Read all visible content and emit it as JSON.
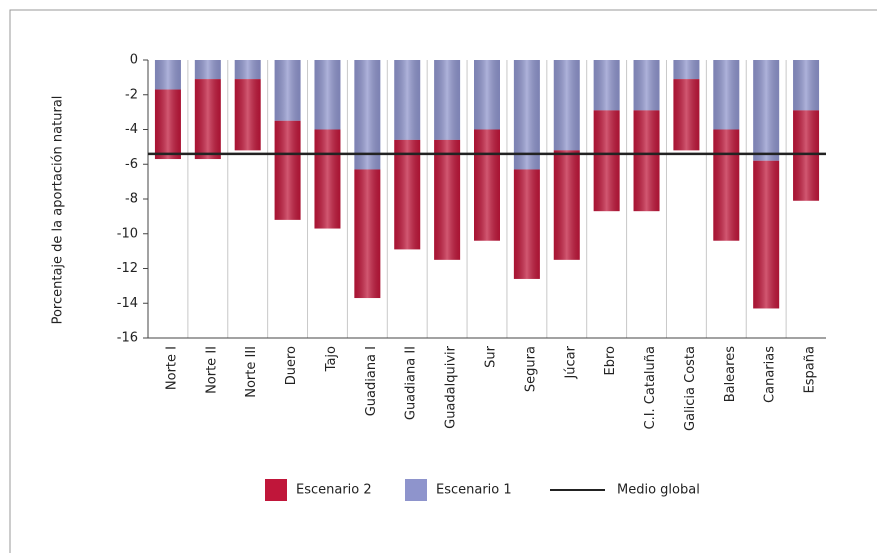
{
  "chart_data": {
    "type": "stacked_bar",
    "ylabel": "Porcentaje de la aportación natural",
    "categories": [
      "Norte I",
      "Norte II",
      "Norte III",
      "Duero",
      "Tajo",
      "Guadiana I",
      "Guadiana II",
      "Guadalquivir",
      "Sur",
      "Segura",
      "Júcar",
      "Ebro",
      "C.I. Cataluña",
      "Galicia Costa",
      "Baleares",
      "Canarias",
      "España"
    ],
    "series": [
      {
        "name": "Escenario 1",
        "color": "#8e94cc",
        "values": [
          -1.7,
          -1.1,
          -1.1,
          -3.5,
          -4.0,
          -6.3,
          -4.6,
          -4.6,
          -4.0,
          -6.3,
          -5.2,
          -2.9,
          -2.9,
          -1.1,
          -4.0,
          -5.8,
          -2.9
        ]
      },
      {
        "name": "Escenario 2",
        "color": "#c0163a",
        "values": [
          -4.0,
          -4.6,
          -4.1,
          -5.7,
          -5.7,
          -7.4,
          -6.3,
          -6.9,
          -6.4,
          -6.3,
          -6.3,
          -5.8,
          -5.8,
          -4.1,
          -6.4,
          -8.5,
          -5.2
        ]
      }
    ],
    "reference_line": {
      "name": "Medio global",
      "value": -5.4,
      "color": "#222222"
    },
    "ylim": [
      -16,
      0
    ],
    "yticks": [
      0,
      -2,
      -4,
      -6,
      -8,
      -10,
      -12,
      -14,
      -16
    ],
    "legend_order": [
      1,
      0
    ]
  }
}
